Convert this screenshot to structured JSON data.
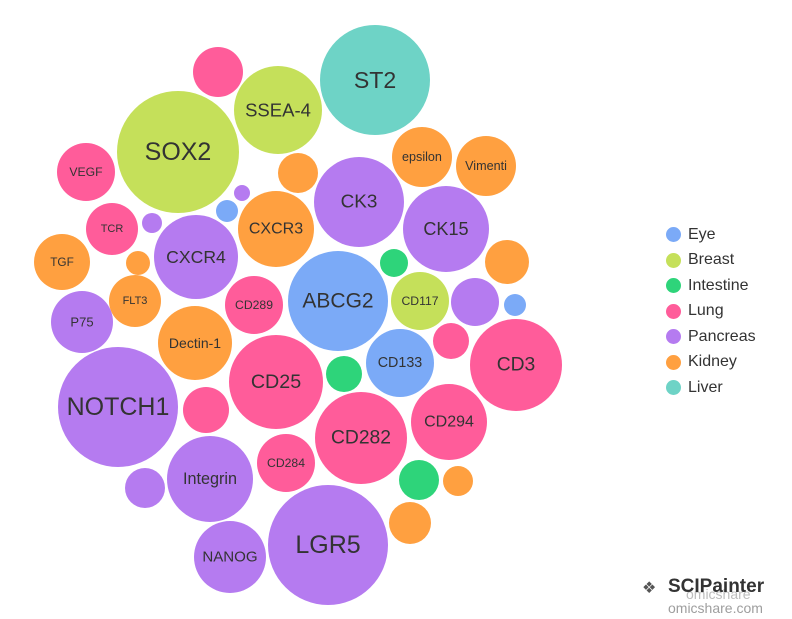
{
  "chart_data": {
    "type": "bubble",
    "legend_position": "right",
    "categories": [
      {
        "name": "Eye",
        "color": "#7BAAF7"
      },
      {
        "name": "Breast",
        "color": "#C5E05A"
      },
      {
        "name": "Intestine",
        "color": "#2ED47A"
      },
      {
        "name": "Lung",
        "color": "#FF5C9A"
      },
      {
        "name": "Pancreas",
        "color": "#B57BF0"
      },
      {
        "name": "Kidney",
        "color": "#FFA040"
      },
      {
        "name": "Liver",
        "color": "#6ED3C6"
      }
    ],
    "bubbles": [
      {
        "label": "ST2",
        "category": "Liver",
        "value": 55
      },
      {
        "label": "SSEA-4",
        "category": "Breast",
        "value": 44
      },
      {
        "label": "SOX2",
        "category": "Breast",
        "value": 61
      },
      {
        "label": "",
        "category": "Lung",
        "value": 25
      },
      {
        "label": "epsilon",
        "category": "Kidney",
        "value": 30
      },
      {
        "label": "Vimenti",
        "category": "Kidney",
        "value": 30
      },
      {
        "label": "VEGF",
        "category": "Lung",
        "value": 29
      },
      {
        "label": "",
        "category": "Kidney",
        "value": 20
      },
      {
        "label": "CK3",
        "category": "Pancreas",
        "value": 45
      },
      {
        "label": "",
        "category": "Pancreas",
        "value": 8
      },
      {
        "label": "",
        "category": "Eye",
        "value": 11
      },
      {
        "label": "CXCR3",
        "category": "Kidney",
        "value": 38
      },
      {
        "label": "CK15",
        "category": "Pancreas",
        "value": 43
      },
      {
        "label": "TCR",
        "category": "Lung",
        "value": 26
      },
      {
        "label": "",
        "category": "Pancreas",
        "value": 10
      },
      {
        "label": "CXCR4",
        "category": "Pancreas",
        "value": 42
      },
      {
        "label": "",
        "category": "Kidney",
        "value": 12
      },
      {
        "label": "TGF",
        "category": "Kidney",
        "value": 28
      },
      {
        "label": "",
        "category": "Intestine",
        "value": 14
      },
      {
        "label": "",
        "category": "Kidney",
        "value": 22
      },
      {
        "label": "ABCG2",
        "category": "Eye",
        "value": 50
      },
      {
        "label": "CD289",
        "category": "Lung",
        "value": 29
      },
      {
        "label": "FLT3",
        "category": "Kidney",
        "value": 26
      },
      {
        "label": "CD117",
        "category": "Breast",
        "value": 29
      },
      {
        "label": "",
        "category": "Pancreas",
        "value": 24
      },
      {
        "label": "",
        "category": "Eye",
        "value": 11
      },
      {
        "label": "P75",
        "category": "Pancreas",
        "value": 31
      },
      {
        "label": "Dectin-1",
        "category": "Kidney",
        "value": 37
      },
      {
        "label": "",
        "category": "Lung",
        "value": 18
      },
      {
        "label": "CD3",
        "category": "Lung",
        "value": 46
      },
      {
        "label": "CD133",
        "category": "Eye",
        "value": 34
      },
      {
        "label": "CD25",
        "category": "Lung",
        "value": 47
      },
      {
        "label": "",
        "category": "Intestine",
        "value": 18
      },
      {
        "label": "NOTCH1",
        "category": "Pancreas",
        "value": 60
      },
      {
        "label": "",
        "category": "Lung",
        "value": 23
      },
      {
        "label": "CD282",
        "category": "Lung",
        "value": 46
      },
      {
        "label": "CD294",
        "category": "Lung",
        "value": 38
      },
      {
        "label": "Integrin",
        "category": "Pancreas",
        "value": 43
      },
      {
        "label": "CD284",
        "category": "Lung",
        "value": 29
      },
      {
        "label": "",
        "category": "Intestine",
        "value": 20
      },
      {
        "label": "",
        "category": "Kidney",
        "value": 15
      },
      {
        "label": "",
        "category": "Pancreas",
        "value": 20
      },
      {
        "label": "",
        "category": "Kidney",
        "value": 21
      },
      {
        "label": "LGR5",
        "category": "Pancreas",
        "value": 60
      },
      {
        "label": "NANOG",
        "category": "Pancreas",
        "value": 36
      }
    ]
  },
  "watermark": {
    "icon": "wechat-icon",
    "brand": "SCIPainter",
    "site_overlay": "omicshare",
    "site": "omicshare.com"
  }
}
